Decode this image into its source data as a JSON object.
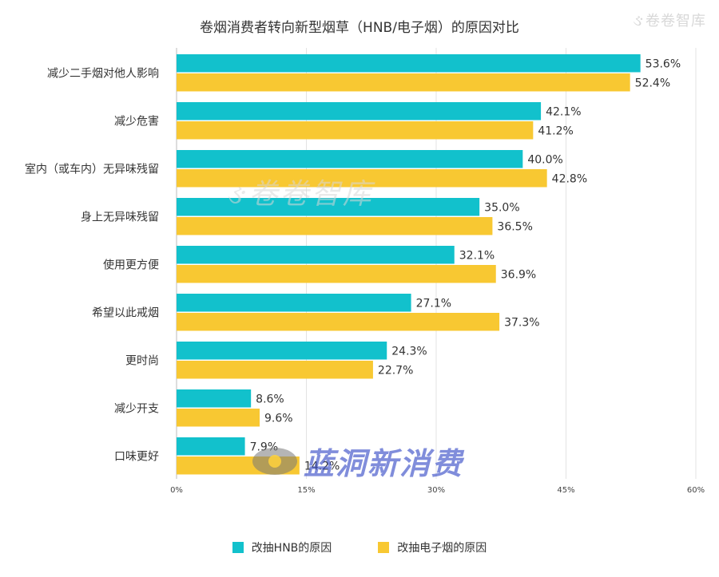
{
  "watermarks": {
    "top_right": "卷卷智库",
    "middle": "卷卷智库",
    "bottom": "蓝洞新消费"
  },
  "chart_data": {
    "type": "bar",
    "orientation": "horizontal",
    "title": "卷烟消费者转向新型烟草（HNB/电子烟）的原因对比",
    "categories": [
      "减少二手烟对他人影响",
      "减少危害",
      "室内（或车内）无异味残留",
      "身上无异味残留",
      "使用更方便",
      "希望以此戒烟",
      "更时尚",
      "减少开支",
      "口味更好"
    ],
    "series": [
      {
        "name": "改抽HNB的原因",
        "color": "#12c1cc",
        "values": [
          53.6,
          42.1,
          40.0,
          35.0,
          32.1,
          27.1,
          24.3,
          8.6,
          7.9
        ],
        "labels": [
          "53.6%",
          "42.1%",
          "40.0%",
          "35.0%",
          "32.1%",
          "27.1%",
          "24.3%",
          "8.6%",
          "7.9%"
        ]
      },
      {
        "name": "改抽电子烟的原因",
        "color": "#f8c832",
        "values": [
          52.4,
          41.2,
          42.8,
          36.5,
          36.9,
          37.3,
          22.7,
          9.6,
          14.2
        ],
        "labels": [
          "52.4%",
          "41.2%",
          "42.8%",
          "36.5%",
          "36.9%",
          "37.3%",
          "22.7%",
          "9.6%",
          "14.2%"
        ]
      }
    ],
    "xlim": [
      0,
      60
    ],
    "xticks": [
      0,
      15,
      30,
      45,
      60
    ],
    "xtick_labels": [
      "0%",
      "15%",
      "30%",
      "45%",
      "60%"
    ],
    "grid": "vertical",
    "legend": "bottom"
  }
}
